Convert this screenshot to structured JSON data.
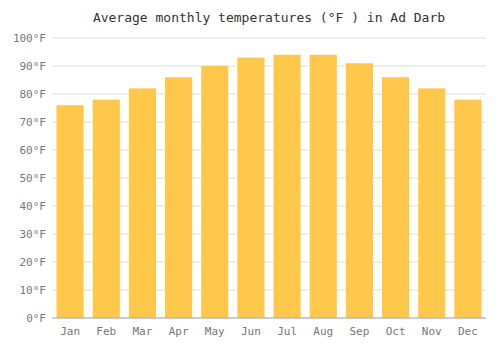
{
  "chart_data": {
    "type": "bar",
    "title": "Average monthly temperatures (°F ) in Ad Darb",
    "categories": [
      "Jan",
      "Feb",
      "Mar",
      "Apr",
      "May",
      "Jun",
      "Jul",
      "Aug",
      "Sep",
      "Oct",
      "Nov",
      "Dec"
    ],
    "values": [
      76,
      78,
      82,
      86,
      90,
      93,
      94,
      94,
      91,
      86,
      82,
      78
    ],
    "color": "#FFC84A",
    "ylim": [
      0,
      100
    ],
    "yticks": [
      {
        "value": 0,
        "label": "0°F"
      },
      {
        "value": 10,
        "label": "10°F"
      },
      {
        "value": 20,
        "label": "20°F"
      },
      {
        "value": 30,
        "label": "30°F"
      },
      {
        "value": 40,
        "label": "40°F"
      },
      {
        "value": 50,
        "label": "50°F"
      },
      {
        "value": 60,
        "label": "60°F"
      },
      {
        "value": 70,
        "label": "70°F"
      },
      {
        "value": 80,
        "label": "80°F"
      },
      {
        "value": 90,
        "label": "90°F"
      },
      {
        "value": 100,
        "label": "100°F"
      }
    ],
    "grid": true
  }
}
